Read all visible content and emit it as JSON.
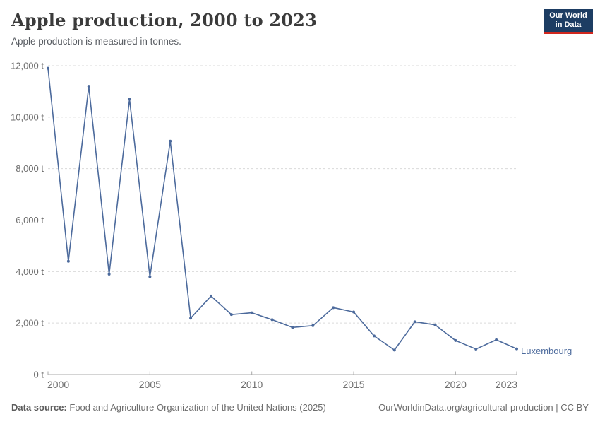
{
  "header": {
    "title": "Apple production, 2000 to 2023",
    "subtitle": "Apple production is measured in tonnes."
  },
  "logo": {
    "line1": "Our World",
    "line2": "in Data",
    "bg_color": "#1d3d63",
    "accent_color": "#d1271e"
  },
  "chart_data": {
    "type": "line",
    "title": "Apple production, 2000 to 2023",
    "unit": "t",
    "xlim": [
      2000,
      2023
    ],
    "ylim": [
      0,
      12000
    ],
    "grid": "horizontal-dashed",
    "x": [
      2000,
      2001,
      2002,
      2003,
      2004,
      2005,
      2006,
      2007,
      2008,
      2009,
      2010,
      2011,
      2012,
      2013,
      2014,
      2015,
      2016,
      2017,
      2018,
      2019,
      2020,
      2021,
      2022,
      2023
    ],
    "series": [
      {
        "name": "Luxembourg",
        "color": "#4c6a9c",
        "values": [
          11900,
          4400,
          11200,
          3900,
          10700,
          3800,
          9070,
          2190,
          3050,
          2330,
          2400,
          2130,
          1830,
          1900,
          2600,
          2430,
          1500,
          950,
          2050,
          1930,
          1320,
          990,
          1350,
          1000
        ]
      }
    ],
    "x_ticks": [
      {
        "value": 2000,
        "label": "2000",
        "align": "start"
      },
      {
        "value": 2005,
        "label": "2005",
        "align": "middle"
      },
      {
        "value": 2010,
        "label": "2010",
        "align": "middle"
      },
      {
        "value": 2015,
        "label": "2015",
        "align": "middle"
      },
      {
        "value": 2020,
        "label": "2020",
        "align": "middle"
      },
      {
        "value": 2023,
        "label": "2023",
        "align": "end"
      }
    ],
    "y_ticks": [
      {
        "value": 0,
        "label": "0 t"
      },
      {
        "value": 2000,
        "label": "2,000 t"
      },
      {
        "value": 4000,
        "label": "4,000 t"
      },
      {
        "value": 6000,
        "label": "6,000 t"
      },
      {
        "value": 8000,
        "label": "8,000 t"
      },
      {
        "value": 10000,
        "label": "10,000 t"
      },
      {
        "value": 12000,
        "label": "12,000 t"
      }
    ],
    "colors": {
      "gridline": "#dadada",
      "axis": "#a8a8a8",
      "tick_label": "#6e6e6e"
    }
  },
  "footer": {
    "source_label": "Data source:",
    "source_text": "Food and Agriculture Organization of the United Nations (2025)",
    "link_text": "OurWorldinData.org/agricultural-production | CC BY"
  }
}
